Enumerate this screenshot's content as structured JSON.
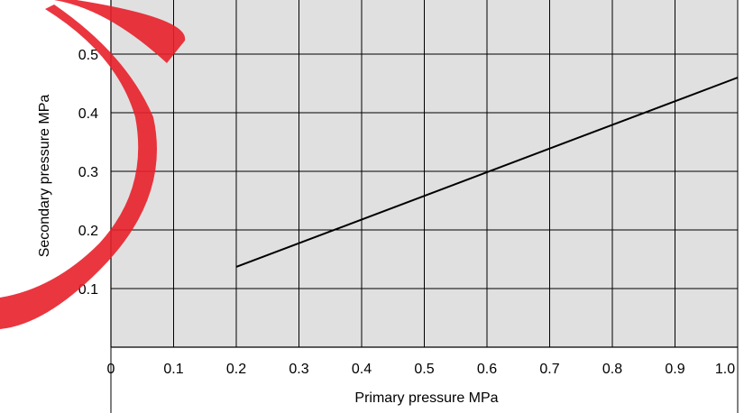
{
  "chart_data": {
    "type": "line",
    "title": "",
    "xlabel": "Primary pressure  MPa",
    "ylabel": "Secondary pressure  MPa",
    "xlim": [
      0,
      1.0
    ],
    "ylim": [
      0,
      0.5
    ],
    "x_ticks": [
      "0",
      "0.1",
      "0.2",
      "0.3",
      "0.4",
      "0.5",
      "0.6",
      "0.7",
      "0.8",
      "0.9",
      "1.0"
    ],
    "y_ticks": [
      "0.1",
      "0.2",
      "0.3",
      "0.4",
      "0.5"
    ],
    "grid": true,
    "series": [
      {
        "x": [
          0.2,
          1.0
        ],
        "y": [
          0.137,
          0.46
        ]
      }
    ],
    "colors": {
      "plot_background": "#e0e0e0",
      "grid": "#000000",
      "line": "#000000",
      "watermark": "#e8202a"
    }
  }
}
